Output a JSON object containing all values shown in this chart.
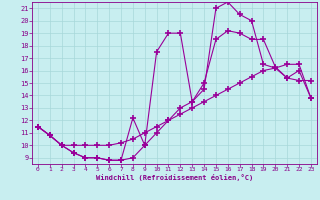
{
  "xlabel": "Windchill (Refroidissement éolien,°C)",
  "bg_color": "#c8eef0",
  "grid_color": "#a8d8da",
  "line_color": "#990099",
  "text_color": "#880088",
  "xlim": [
    -0.5,
    23.5
  ],
  "ylim": [
    8.5,
    21.5
  ],
  "xticks": [
    0,
    1,
    2,
    3,
    4,
    5,
    6,
    7,
    8,
    9,
    10,
    11,
    12,
    13,
    14,
    15,
    16,
    17,
    18,
    19,
    20,
    21,
    22,
    23
  ],
  "yticks": [
    9,
    10,
    11,
    12,
    13,
    14,
    15,
    16,
    17,
    18,
    19,
    20,
    21
  ],
  "series1_x": [
    0,
    1,
    2,
    3,
    4,
    5,
    6,
    7,
    8,
    9,
    10,
    11,
    12,
    13,
    14,
    15,
    16,
    17,
    18,
    19,
    20,
    21,
    22,
    23
  ],
  "series1_y": [
    11.5,
    10.8,
    10.0,
    9.4,
    9.0,
    9.0,
    8.8,
    8.8,
    12.2,
    10.0,
    17.5,
    19.0,
    19.0,
    13.5,
    14.5,
    21.0,
    21.5,
    20.5,
    20.0,
    16.5,
    16.2,
    15.4,
    16.0,
    13.8
  ],
  "series2_x": [
    0,
    1,
    2,
    3,
    4,
    5,
    6,
    7,
    8,
    9,
    10,
    11,
    12,
    13,
    14,
    15,
    16,
    17,
    18,
    19,
    20,
    21,
    22,
    23
  ],
  "series2_y": [
    11.5,
    10.8,
    10.0,
    9.4,
    9.0,
    9.0,
    8.8,
    8.8,
    9.0,
    10.0,
    11.0,
    12.0,
    13.0,
    13.5,
    15.0,
    18.5,
    19.2,
    19.0,
    18.5,
    18.5,
    16.3,
    15.4,
    15.2,
    15.2
  ],
  "series3_x": [
    0,
    1,
    2,
    3,
    4,
    5,
    6,
    7,
    8,
    9,
    10,
    11,
    12,
    13,
    14,
    15,
    16,
    17,
    18,
    19,
    20,
    21,
    22,
    23
  ],
  "series3_y": [
    11.5,
    10.8,
    10.0,
    10.0,
    10.0,
    10.0,
    10.0,
    10.2,
    10.5,
    11.0,
    11.5,
    12.0,
    12.5,
    13.0,
    13.5,
    14.0,
    14.5,
    15.0,
    15.5,
    16.0,
    16.2,
    16.5,
    16.5,
    13.8
  ]
}
